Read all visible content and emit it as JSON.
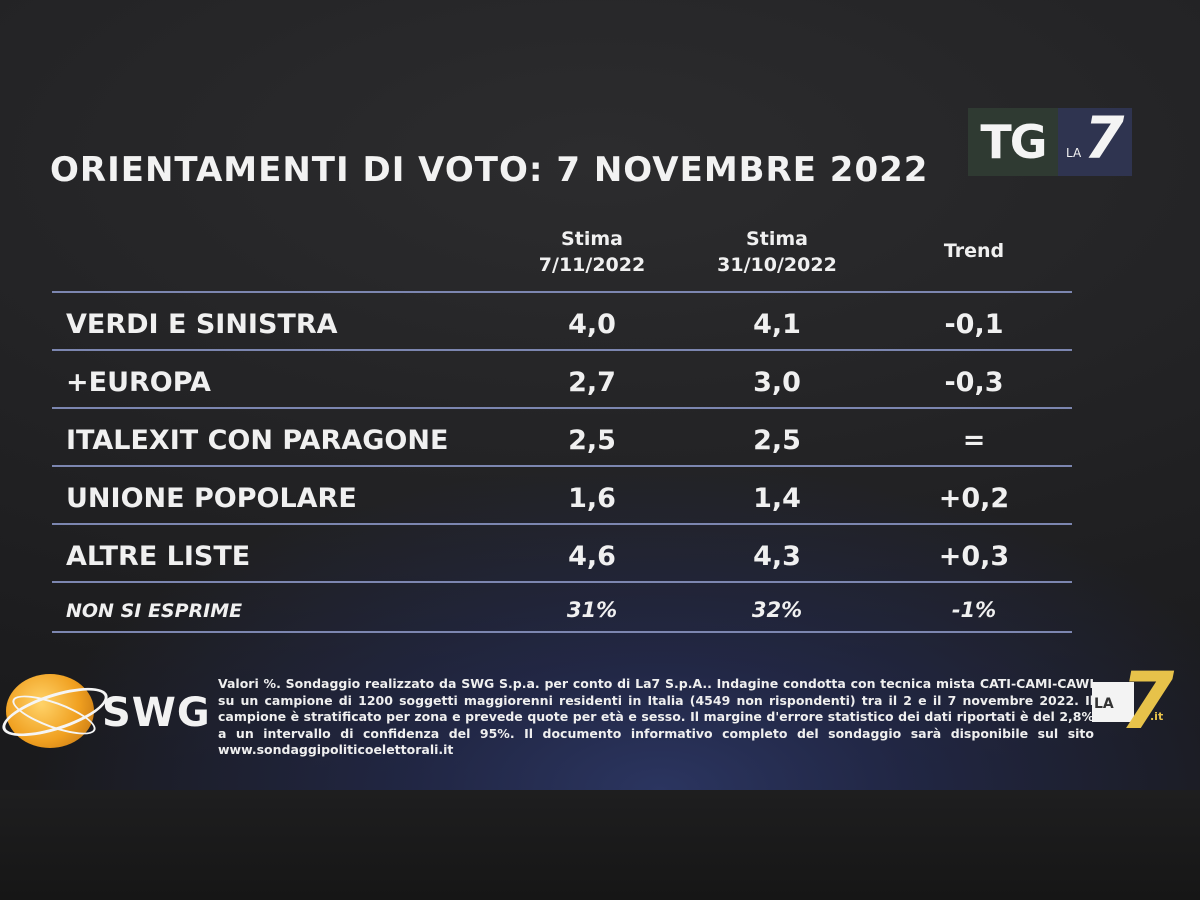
{
  "title": "ORIENTAMENTI DI VOTO: 7 NOVEMBRE 2022",
  "logo_tg": {
    "tg": "TG",
    "la": "LA",
    "seven": "7"
  },
  "chart_data": {
    "type": "table",
    "columns": [
      {
        "line1": "Stima",
        "line2": "7/11/2022"
      },
      {
        "line1": "Stima",
        "line2": "31/10/2022"
      },
      {
        "line1": "Trend",
        "line2": ""
      }
    ],
    "rows": [
      {
        "label": "VERDI E SINISTRA",
        "stima_7_11": "4,0",
        "stima_31_10": "4,1",
        "trend": "-0,1"
      },
      {
        "label": "+EUROPA",
        "stima_7_11": "2,7",
        "stima_31_10": "3,0",
        "trend": "-0,3"
      },
      {
        "label": "ITALEXIT CON PARAGONE",
        "stima_7_11": "2,5",
        "stima_31_10": "2,5",
        "trend": "="
      },
      {
        "label": "UNIONE POPOLARE",
        "stima_7_11": "1,6",
        "stima_31_10": "1,4",
        "trend": "+0,2"
      },
      {
        "label": "ALTRE LISTE",
        "stima_7_11": "4,6",
        "stima_31_10": "4,3",
        "trend": "+0,3"
      }
    ],
    "footer_row": {
      "label": "NON SI ESPRIME",
      "stima_7_11": "31%",
      "stima_31_10": "32%",
      "trend": "-1%"
    }
  },
  "swg_logo_text": "SWG",
  "footnote": "Valori %. Sondaggio realizzato da SWG S.p.a. per conto di La7 S.p.A.. Indagine condotta con tecnica mista CATI-CAMI-CAWI su un campione di 1200 soggetti maggiorenni residenti in Italia (4549 non rispondenti) tra il 2 e il 7 novembre 2022. Il campione è stratificato per zona e prevede quote per età e sesso. Il margine d'errore statistico dei dati riportati è del 2,8% a un intervallo di confidenza del 95%. Il documento informativo completo del sondaggio sarà disponibile sul sito www.sondaggipoliticoelettorali.it",
  "logo_la7": {
    "la": "LA",
    "seven": "7",
    "it": ".it"
  },
  "colors": {
    "text": "#f0f0f0",
    "divider": "#7c86b0",
    "la7_gold": "#e7c24a",
    "swg_orange": "#f0a020"
  }
}
